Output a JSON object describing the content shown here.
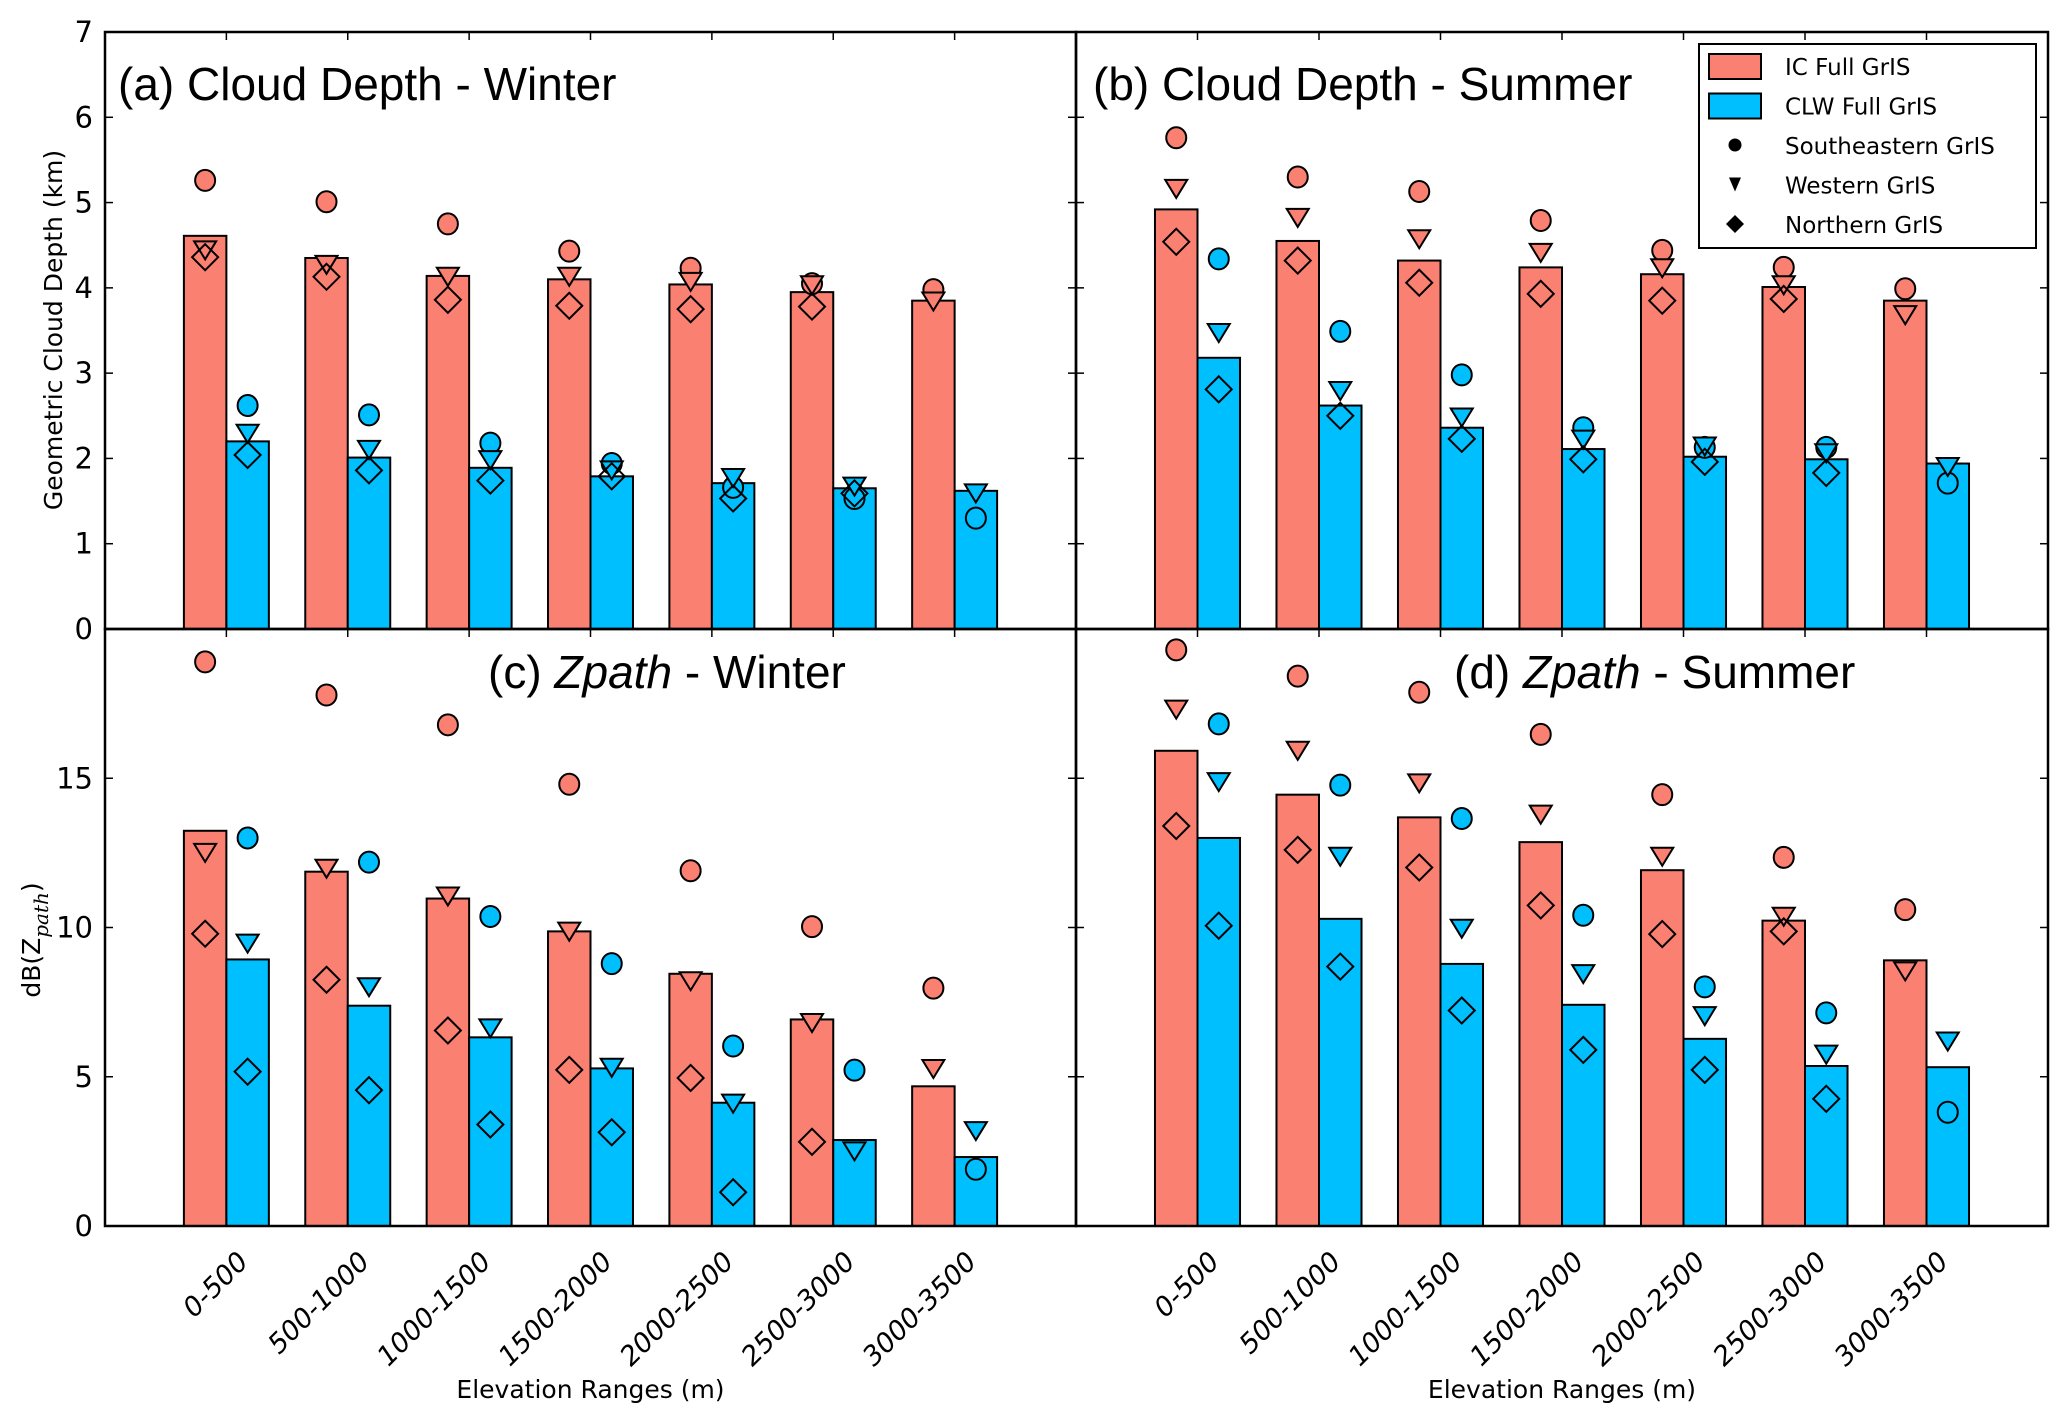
{
  "chart_data": {
    "type": "bar",
    "categories": [
      "0-500",
      "500-1000",
      "1000-1500",
      "1500-2000",
      "2000-2500",
      "2500-3000",
      "3000-3500"
    ],
    "xlabel": "Elevation Ranges (m)",
    "legend": {
      "placement": "top-right of panel (b)",
      "entries": [
        {
          "label": "IC Full GrIS",
          "kind": "bar",
          "color": "#fa8072"
        },
        {
          "label": "CLW Full GrIS",
          "kind": "bar",
          "color": "#00bfff"
        },
        {
          "label": "Southeastern GrIS",
          "kind": "marker",
          "marker": "circle"
        },
        {
          "label": "Western GrIS",
          "kind": "marker",
          "marker": "triangle-down"
        },
        {
          "label": "Northern GrIS",
          "kind": "marker",
          "marker": "diamond"
        }
      ]
    },
    "colors": {
      "IC": "#fa8072",
      "CLW": "#00bfff"
    },
    "panels": [
      {
        "id": "a",
        "title_prefix": "(a) Cloud Depth - Winter",
        "title_italic": "",
        "title_suffix": "",
        "ylabel": "Geometric Cloud Depth (km)",
        "ylim": [
          0,
          7
        ],
        "yticks": [
          0,
          1,
          2,
          3,
          4,
          5,
          6,
          7
        ],
        "series": [
          {
            "name": "IC Full GrIS",
            "values": [
              4.61,
              4.35,
              4.14,
              4.1,
              4.04,
              3.95,
              3.85
            ]
          },
          {
            "name": "CLW Full GrIS",
            "values": [
              2.2,
              2.01,
              1.89,
              1.79,
              1.71,
              1.65,
              1.62
            ]
          }
        ],
        "regional": {
          "IC": {
            "Southeastern GrIS": [
              5.26,
              5.01,
              4.75,
              4.43,
              4.23,
              4.05,
              3.98
            ],
            "Western GrIS": [
              4.44,
              4.27,
              4.13,
              4.13,
              4.07,
              4.03,
              3.84
            ],
            "Northern GrIS": [
              4.36,
              4.13,
              3.86,
              3.79,
              3.75,
              3.78,
              null
            ]
          },
          "CLW": {
            "Southeastern GrIS": [
              2.62,
              2.51,
              2.18,
              1.94,
              1.66,
              1.53,
              1.3
            ],
            "Western GrIS": [
              2.29,
              2.1,
              1.98,
              1.86,
              1.77,
              1.67,
              1.59
            ],
            "Northern GrIS": [
              2.04,
              1.86,
              1.74,
              1.79,
              1.53,
              1.59,
              null
            ]
          }
        }
      },
      {
        "id": "b",
        "title_prefix": "(b) Cloud Depth - Summer",
        "title_italic": "",
        "title_suffix": "",
        "ylabel": "",
        "ylim": [
          0,
          7
        ],
        "yticks": [
          0,
          1,
          2,
          3,
          4,
          5,
          6,
          7
        ],
        "series": [
          {
            "name": "IC Full GrIS",
            "values": [
              4.92,
              4.55,
              4.32,
              4.24,
              4.16,
              4.01,
              3.85
            ]
          },
          {
            "name": "CLW Full GrIS",
            "values": [
              3.18,
              2.62,
              2.36,
              2.11,
              2.02,
              1.99,
              1.94
            ]
          }
        ],
        "regional": {
          "IC": {
            "Southeastern GrIS": [
              5.76,
              5.3,
              5.13,
              4.79,
              4.44,
              4.24,
              3.99
            ],
            "Western GrIS": [
              5.16,
              4.82,
              4.57,
              4.41,
              4.23,
              4.03,
              3.68
            ],
            "Northern GrIS": [
              4.54,
              4.32,
              4.06,
              3.93,
              3.85,
              3.87,
              null
            ]
          },
          "CLW": {
            "Southeastern GrIS": [
              4.34,
              3.49,
              2.98,
              2.36,
              2.13,
              2.13,
              1.71
            ],
            "Western GrIS": [
              3.47,
              2.79,
              2.48,
              2.22,
              2.14,
              2.06,
              1.9
            ],
            "Northern GrIS": [
              2.81,
              2.5,
              2.23,
              1.99,
              1.96,
              1.83,
              null
            ]
          }
        }
      },
      {
        "id": "c",
        "title_prefix": "(c) ",
        "title_italic": "Zpath",
        "title_suffix": " - Winter",
        "ylabel": "dB(Z_path)",
        "ylabel_main": "dB(Z",
        "ylabel_sub": "path",
        "ylabel_end": ")",
        "ylim": [
          0,
          20
        ],
        "yticks": [
          0,
          5,
          10,
          15
        ],
        "series": [
          {
            "name": "IC Full GrIS",
            "values": [
              13.24,
              11.87,
              10.97,
              9.87,
              8.45,
              6.92,
              4.68
            ]
          },
          {
            "name": "CLW Full GrIS",
            "values": [
              8.93,
              7.38,
              6.32,
              5.28,
              4.13,
              2.88,
              2.31
            ]
          }
        ],
        "regional": {
          "IC": {
            "Southeastern GrIS": [
              18.9,
              17.79,
              16.79,
              14.8,
              11.9,
              10.03,
              7.97
            ],
            "Western GrIS": [
              12.5,
              11.97,
              11.04,
              9.86,
              8.2,
              6.8,
              5.26
            ],
            "Northern GrIS": [
              9.79,
              8.25,
              6.55,
              5.23,
              4.96,
              2.82,
              null
            ]
          },
          "CLW": {
            "Southeastern GrIS": [
              13.0,
              12.19,
              10.37,
              8.79,
              6.03,
              5.22,
              1.9
            ],
            "Western GrIS": [
              9.46,
              8.0,
              6.62,
              5.3,
              4.1,
              2.5,
              3.18
            ],
            "Northern GrIS": [
              5.17,
              4.55,
              3.4,
              3.14,
              1.13,
              null,
              null
            ]
          }
        }
      },
      {
        "id": "d",
        "title_prefix": "(d) ",
        "title_italic": "Zpath",
        "title_suffix": " - Summer",
        "ylabel": "",
        "ylim": [
          0,
          20
        ],
        "yticks": [
          0,
          5,
          10,
          15
        ],
        "series": [
          {
            "name": "IC Full GrIS",
            "values": [
              15.92,
              14.45,
              13.69,
              12.86,
              11.92,
              10.23,
              8.9
            ]
          },
          {
            "name": "CLW Full GrIS",
            "values": [
              13.0,
              10.29,
              8.78,
              7.41,
              6.27,
              5.36,
              5.32
            ]
          }
        ],
        "regional": {
          "IC": {
            "Southeastern GrIS": [
              19.3,
              18.42,
              17.88,
              16.47,
              14.45,
              12.35,
              10.6
            ],
            "Western GrIS": [
              17.3,
              15.92,
              14.83,
              13.78,
              12.37,
              10.36,
              8.53
            ],
            "Northern GrIS": [
              13.4,
              12.6,
              12.01,
              10.74,
              9.78,
              9.87,
              null
            ]
          },
          "CLW": {
            "Southeastern GrIS": [
              16.82,
              14.77,
              13.65,
              10.41,
              8.01,
              7.14,
              3.81
            ],
            "Western GrIS": [
              14.87,
              12.37,
              9.96,
              8.44,
              7.03,
              5.74,
              6.18
            ],
            "Northern GrIS": [
              10.06,
              8.69,
              7.22,
              5.9,
              5.23,
              4.26,
              null
            ]
          }
        }
      }
    ]
  }
}
